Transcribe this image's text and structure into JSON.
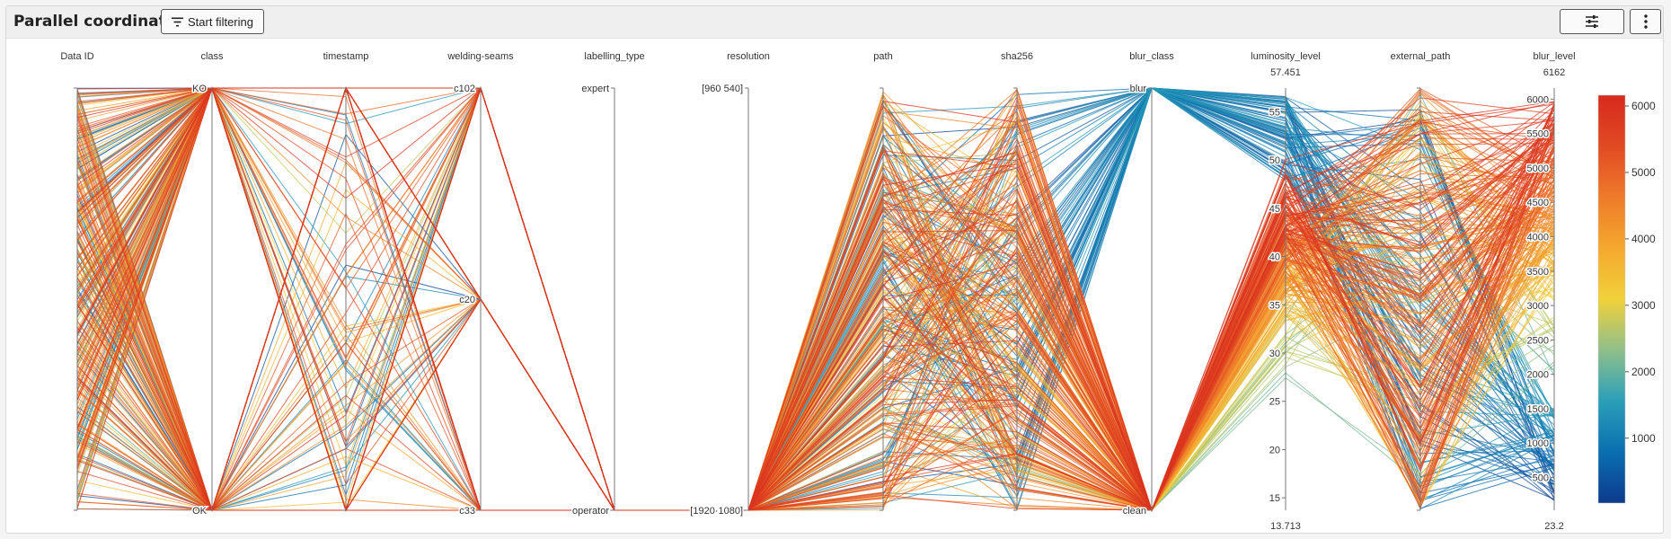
{
  "header": {
    "title": "Parallel coordinate",
    "filter_button_label": "Start filtering",
    "filter_icon": "filter-icon",
    "settings_icon": "sliders-icon",
    "more_icon": "kebab-menu-icon"
  },
  "chart_data": {
    "type": "parallel-coordinates",
    "color_dimension": "blur_level",
    "colorscale": [
      "#0d3a8c",
      "#0a6fb0",
      "#2a9fb8",
      "#8fbf8a",
      "#f1d13a",
      "#f4a82e",
      "#ee7a2a",
      "#e14a23",
      "#d72a1e"
    ],
    "colorbar": {
      "range": [
        23.2,
        6162
      ],
      "ticks": [
        1000,
        2000,
        3000,
        4000,
        5000,
        6000
      ]
    },
    "dimensions": [
      {
        "label": "Data ID",
        "kind": "continuous",
        "ticks": []
      },
      {
        "label": "class",
        "kind": "categorical",
        "categories": [
          "KO",
          "OK"
        ]
      },
      {
        "label": "timestamp",
        "kind": "continuous",
        "ticks": []
      },
      {
        "label": "welding-seams",
        "kind": "categorical",
        "categories": [
          "c102",
          "c20",
          "c33"
        ]
      },
      {
        "label": "labelling_type",
        "kind": "categorical",
        "categories": [
          "expert",
          "operator"
        ]
      },
      {
        "label": "resolution",
        "kind": "categorical",
        "categories": [
          "[960 540]",
          "[1920·1080]"
        ]
      },
      {
        "label": "path",
        "kind": "continuous",
        "ticks": []
      },
      {
        "label": "sha256",
        "kind": "continuous",
        "ticks": []
      },
      {
        "label": "blur_class",
        "kind": "categorical",
        "categories": [
          "blur",
          "clean"
        ]
      },
      {
        "label": "luminosity_level",
        "kind": "continuous",
        "range": [
          13.713,
          57.451
        ],
        "max_label": "57.451",
        "min_label": "13.713",
        "ticks": [
          15,
          20,
          25,
          30,
          35,
          40,
          45,
          50,
          55
        ]
      },
      {
        "label": "external_path",
        "kind": "continuous",
        "ticks": []
      },
      {
        "label": "blur_level",
        "kind": "continuous",
        "range": [
          23.2,
          6162
        ],
        "max_label": "6162",
        "min_label": "23.2",
        "ticks": [
          500,
          1000,
          1500,
          2000,
          2500,
          3000,
          3500,
          4000,
          4500,
          5000,
          5500,
          6000
        ]
      }
    ]
  }
}
